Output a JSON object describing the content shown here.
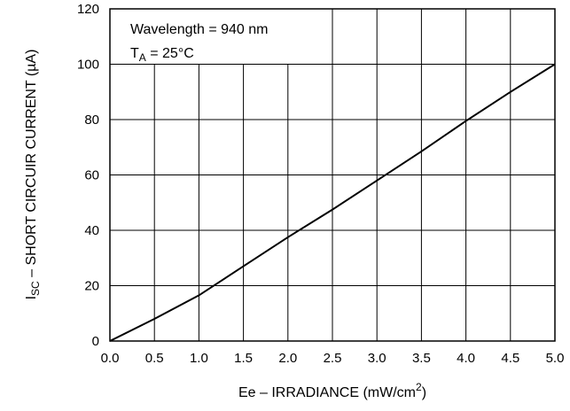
{
  "chart_data": {
    "type": "line",
    "xlabel": "Ee – IRRADIANCE (mW/cm2)",
    "xlabel_main": "Ee – IRRADIANCE (mW/cm",
    "xlabel_sup": "2",
    "xlabel_close": ")",
    "ylabel_prefix": "I",
    "ylabel_sub": "SC",
    "ylabel_main": " – SHORT CIRCUIR CURRENT (µA)",
    "xlim": [
      0,
      5
    ],
    "ylim": [
      0,
      120
    ],
    "x_ticks": [
      "0.0",
      "0.5",
      "1.0",
      "1.5",
      "2.0",
      "2.5",
      "3.0",
      "3.5",
      "4.0",
      "4.5",
      "5.0"
    ],
    "y_ticks": [
      "0",
      "20",
      "40",
      "60",
      "80",
      "100",
      "120"
    ],
    "grid": true,
    "annotation": {
      "line1": "Wavelength = 940 nm",
      "line2_prefix": "T",
      "line2_sub": "A",
      "line2_rest": " = 25°C"
    },
    "series": [
      {
        "x": [
          0,
          0.5,
          1.0,
          1.5,
          2.0,
          2.5,
          3.0,
          3.5,
          4.0,
          4.5,
          5.0
        ],
        "y": [
          0,
          8,
          16.5,
          27,
          37.5,
          47.5,
          58,
          68.5,
          79.5,
          90,
          100
        ],
        "color": "#000000"
      }
    ]
  }
}
